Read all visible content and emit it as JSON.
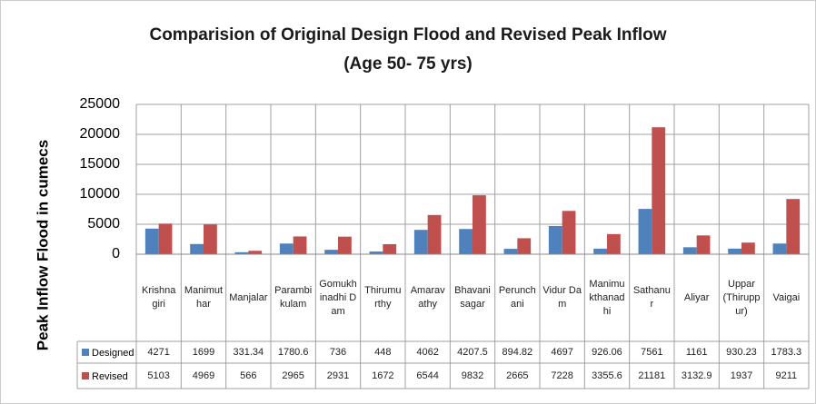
{
  "chart_data": {
    "type": "bar",
    "title": "Comparision of Original Design Flood and Revised Peak Inflow",
    "subtitle": "(Age 50- 75 yrs)",
    "y_label": "Peak Inflow Flood in cumecs",
    "categories": [
      "Krishnagiri",
      "Manimuthar",
      "Manjalar",
      "Parambikulam",
      "Gomukhinadhi Dam",
      "Thirumurthy",
      "Amaravathy",
      "Bhavanisagar",
      "Perunchani",
      "Vidur Dam",
      "Manimukthanadhi",
      "Sathanur",
      "Aliyar",
      "Uppar (Thiruppur)",
      "Vaigai"
    ],
    "series": [
      {
        "name": "Designed",
        "color": "#4f81bd",
        "values": [
          4271,
          1699,
          331.34,
          1780.6,
          736,
          448,
          4062,
          4207.5,
          894.82,
          4697,
          926.06,
          7561,
          1161,
          930.23,
          1783.3
        ]
      },
      {
        "name": "Revised",
        "color": "#c0504d",
        "values": [
          5103,
          4969,
          566,
          2965,
          2931,
          1672,
          6544,
          9832,
          2665,
          7228,
          3355.6,
          21181,
          3132.9,
          1937,
          9211
        ]
      }
    ],
    "ylim": [
      0,
      25000
    ],
    "yticks": [
      0,
      5000,
      10000,
      15000,
      20000,
      25000
    ],
    "grid": true
  }
}
